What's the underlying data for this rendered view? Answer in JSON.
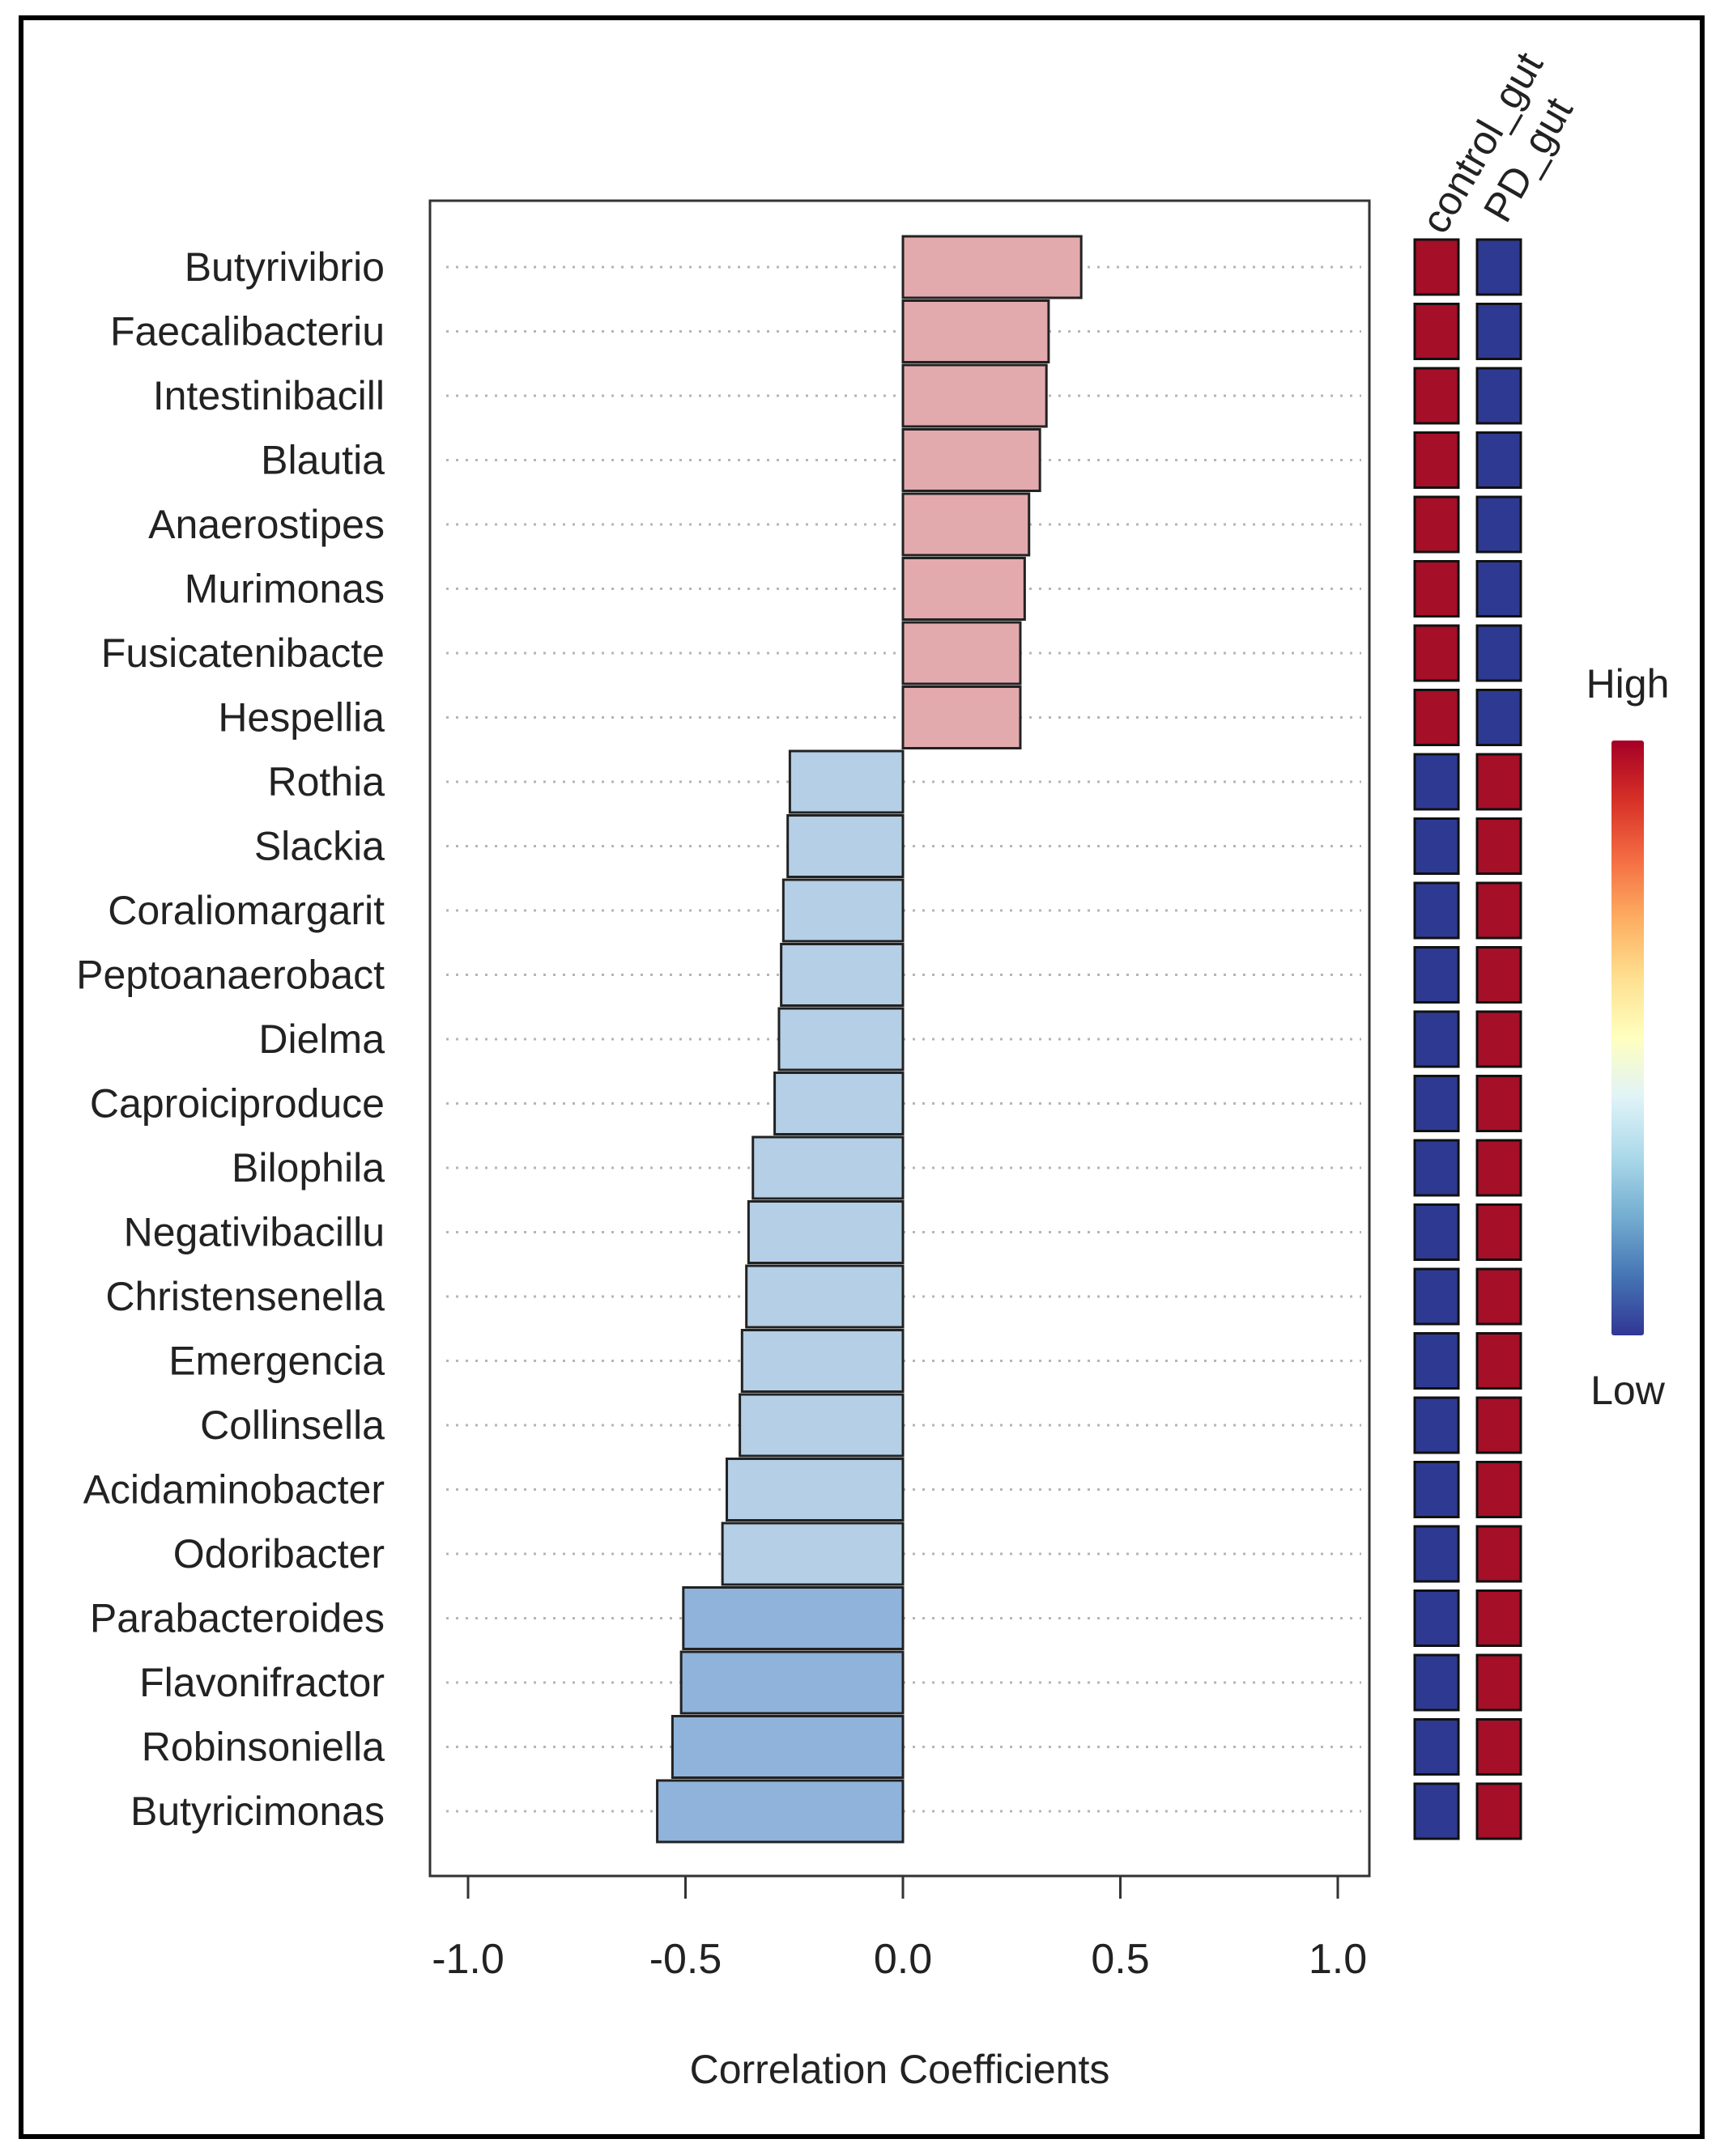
{
  "chart_data": {
    "type": "bar",
    "orientation": "horizontal",
    "title": "",
    "xlabel": "Correlation Coefficients",
    "ylabel": "",
    "xlim": [
      -1.0,
      1.0
    ],
    "x_ticks": [
      -1.0,
      -0.5,
      0.0,
      0.5,
      1.0
    ],
    "x_tick_labels": [
      "-1.0",
      "-0.5",
      "0.0",
      "0.5",
      "1.0"
    ],
    "grid": "dotted horizontal guide per category",
    "categories": [
      "Butyrivibrio",
      "Faecalibacteriu",
      "Intestinibacill",
      "Blautia",
      "Anaerostipes",
      "Murimonas",
      "Fusicatenibacte",
      "Hespellia",
      "Rothia",
      "Slackia",
      "Coraliomargarit",
      "Peptoanaerobact",
      "Dielma",
      "Caproiciproduce",
      "Bilophila",
      "Negativibacillu",
      "Christensenella",
      "Emergencia",
      "Collinsella",
      "Acidaminobacter",
      "Odoribacter",
      "Parabacteroides",
      "Flavonifractor",
      "Robinsoniella",
      "Butyricimonas"
    ],
    "values": [
      0.41,
      0.335,
      0.33,
      0.315,
      0.29,
      0.28,
      0.27,
      0.27,
      -0.26,
      -0.265,
      -0.275,
      -0.28,
      -0.285,
      -0.295,
      -0.345,
      -0.355,
      -0.36,
      -0.37,
      -0.375,
      -0.405,
      -0.415,
      -0.505,
      -0.51,
      -0.53,
      -0.565
    ],
    "bar_colors": {
      "positive": "#e3aaad",
      "negative_weak": "#b4cfe6",
      "negative_strong": "#8fb3da",
      "outline": "#222222"
    },
    "heatmap": {
      "columns": [
        "control_gut",
        "PD_gut"
      ],
      "levels": [
        [
          "High",
          "Low"
        ],
        [
          "High",
          "Low"
        ],
        [
          "High",
          "Low"
        ],
        [
          "High",
          "Low"
        ],
        [
          "High",
          "Low"
        ],
        [
          "High",
          "Low"
        ],
        [
          "High",
          "Low"
        ],
        [
          "High",
          "Low"
        ],
        [
          "Low",
          "High"
        ],
        [
          "Low",
          "High"
        ],
        [
          "Low",
          "High"
        ],
        [
          "Low",
          "High"
        ],
        [
          "Low",
          "High"
        ],
        [
          "Low",
          "High"
        ],
        [
          "Low",
          "High"
        ],
        [
          "Low",
          "High"
        ],
        [
          "Low",
          "High"
        ],
        [
          "Low",
          "High"
        ],
        [
          "Low",
          "High"
        ],
        [
          "Low",
          "High"
        ],
        [
          "Low",
          "High"
        ],
        [
          "Low",
          "High"
        ],
        [
          "Low",
          "High"
        ],
        [
          "Low",
          "High"
        ],
        [
          "Low",
          "High"
        ]
      ],
      "high_color": "#a50f28",
      "low_color": "#2e3a91"
    },
    "colorbar": {
      "high_label": "High",
      "low_label": "Low",
      "stops": [
        "#a50026",
        "#d73027",
        "#f46d43",
        "#fdae61",
        "#fee090",
        "#ffffbf",
        "#e0f3f8",
        "#abd9e9",
        "#74add1",
        "#4575b4",
        "#313695"
      ]
    }
  }
}
